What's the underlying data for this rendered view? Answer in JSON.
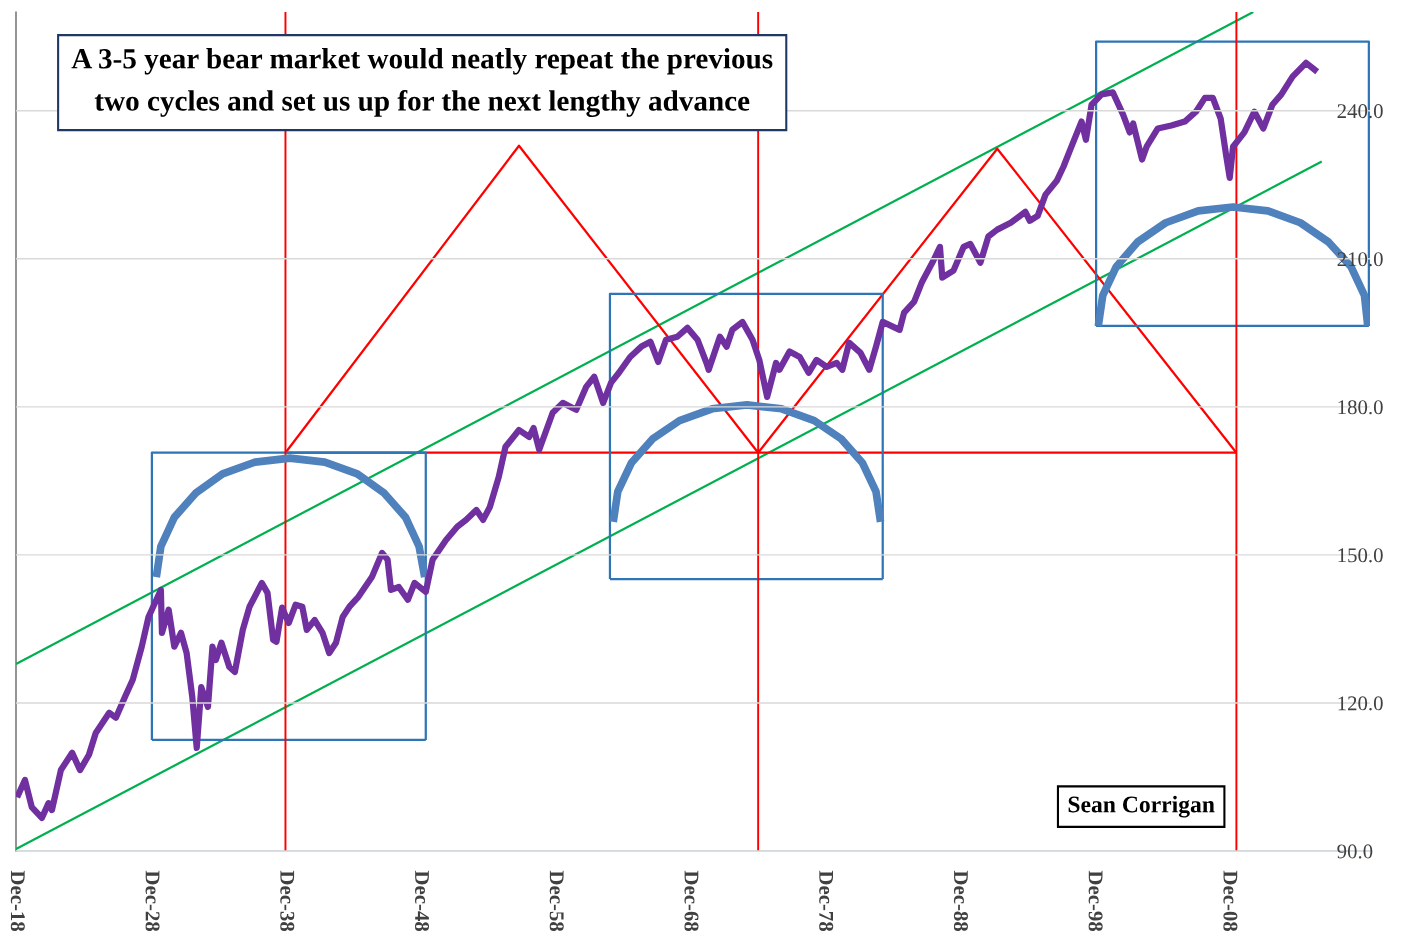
{
  "chart_data": {
    "type": "line",
    "annotations": [
      "A 3-5 year bear market would neatly repeat the previous\ntwo cycles and set us up for the next lengthy advance",
      "Sean Corrigan"
    ],
    "xlim": [
      "1918-12",
      "2019-06"
    ],
    "ylim": [
      90,
      260
    ],
    "xticks": [
      {
        "value": "1918-12",
        "label": "Dec-18"
      },
      {
        "value": "1928-12",
        "label": "Dec-28"
      },
      {
        "value": "1938-12",
        "label": "Dec-38"
      },
      {
        "value": "1948-12",
        "label": "Dec-48"
      },
      {
        "value": "1958-12",
        "label": "Dec-58"
      },
      {
        "value": "1968-12",
        "label": "Dec-68"
      },
      {
        "value": "1978-12",
        "label": "Dec-78"
      },
      {
        "value": "1988-12",
        "label": "Dec-88"
      },
      {
        "value": "1998-12",
        "label": "Dec-98"
      },
      {
        "value": "2008-12",
        "label": "Dec-08"
      }
    ],
    "yticks": [
      {
        "value": 90,
        "label": "90.0"
      },
      {
        "value": 120,
        "label": "120.0"
      },
      {
        "value": 150,
        "label": "150.0"
      },
      {
        "value": 180,
        "label": "180.0"
      },
      {
        "value": 210,
        "label": "210.0"
      },
      {
        "value": 240,
        "label": "240.0"
      }
    ],
    "grid": "y",
    "legend": false,
    "ref_lines": [
      {
        "axis": "x",
        "value": "1938-12",
        "color": "#ff0000"
      },
      {
        "axis": "x",
        "value": "1974-01",
        "color": "#ff0000"
      },
      {
        "axis": "x",
        "value": "2009-07",
        "color": "#ff0000"
      }
    ],
    "series": [
      {
        "color": "#00b050",
        "x": [
          "1918-12",
          "2010-10"
        ],
        "values": [
          127.9,
          260
        ]
      },
      {
        "color": "#00b050",
        "x": [
          "1918-12",
          "2015-11"
        ],
        "values": [
          90.4,
          229.7
        ]
      },
      {
        "color": "#ff0000",
        "x": [
          "1938-12",
          "1956-04",
          "1974-01",
          "1991-10",
          "2009-07"
        ],
        "values": [
          170.7,
          232.9,
          170.7,
          232.3,
          170.7
        ]
      },
      {
        "color": "#ff0000",
        "x": [
          "1938-12",
          "2009-07"
        ],
        "values": [
          170.7,
          170.7
        ]
      },
      {
        "color": "#2e75b6",
        "x": [
          "1929-01",
          "1929-01",
          "1949-05",
          "1949-05"
        ],
        "values": [
          112.5,
          170.7,
          170.7,
          112.5
        ]
      },
      {
        "color": "#2e75b6",
        "x": [
          "1929-01",
          "1949-05"
        ],
        "values": [
          112.5,
          112.5
        ]
      },
      {
        "color": "#2e75b6",
        "x": [
          "1963-01",
          "1963-01",
          "1983-04",
          "1983-04"
        ],
        "values": [
          145.1,
          202.9,
          202.9,
          145.1
        ]
      },
      {
        "color": "#2e75b6",
        "x": [
          "1963-01",
          "1983-04"
        ],
        "values": [
          145.1,
          145.1
        ]
      },
      {
        "color": "#2e75b6",
        "x": [
          "1999-02",
          "1999-02",
          "2019-05",
          "2019-05"
        ],
        "values": [
          196.4,
          254.0,
          254.0,
          196.4
        ]
      },
      {
        "color": "#2e75b6",
        "x": [
          "1999-02",
          "2019-05"
        ],
        "values": [
          196.4,
          196.4
        ]
      },
      {
        "color": "#4f81bd",
        "x": [
          "1929-05",
          "1929-09",
          "1930-09",
          "1932-04",
          "1934-04",
          "1936-09",
          "1939-04",
          "1941-11",
          "1944-04",
          "1946-04",
          "1947-11",
          "1948-11",
          "1949-04"
        ],
        "values": [
          145.5,
          151.7,
          157.6,
          162.5,
          166.4,
          168.8,
          169.6,
          168.8,
          166.4,
          162.5,
          157.6,
          151.7,
          145.5
        ]
      },
      {
        "color": "#4f81bd",
        "x": [
          "1963-04",
          "1963-08",
          "1964-08",
          "1966-03",
          "1968-03",
          "1970-08",
          "1973-03",
          "1975-10",
          "1978-03",
          "1980-03",
          "1981-10",
          "1982-10",
          "1983-02"
        ],
        "values": [
          156.7,
          162.8,
          168.6,
          173.5,
          177.2,
          179.6,
          180.4,
          179.6,
          177.2,
          173.5,
          168.6,
          162.8,
          156.7
        ]
      },
      {
        "color": "#4f81bd",
        "x": [
          "1999-04",
          "1999-08",
          "2000-08",
          "2002-03",
          "2004-04",
          "2006-09",
          "2009-04",
          "2011-11",
          "2014-04",
          "2016-05",
          "2018-01",
          "2019-01",
          "2019-04"
        ],
        "values": [
          196.4,
          202.6,
          208.4,
          213.4,
          217.3,
          219.7,
          220.5,
          219.7,
          217.3,
          213.4,
          208.4,
          202.6,
          196.4
        ]
      },
      {
        "color": "#7030a0",
        "x": [
          "1919-01",
          "1919-08",
          "1920-02",
          "1920-11",
          "1921-05",
          "1921-08",
          "1922-04",
          "1923-02",
          "1923-09",
          "1924-05",
          "1924-11",
          "1925-11",
          "1926-05",
          "1927-01",
          "1927-08",
          "1928-04",
          "1928-10",
          "1929-09",
          "1929-10",
          "1930-04",
          "1930-09",
          "1931-03",
          "1931-08",
          "1932-01",
          "1932-05",
          "1932-09",
          "1933-03",
          "1933-07",
          "1933-10",
          "1934-03",
          "1934-10",
          "1935-03",
          "1935-10",
          "1936-04",
          "1937-03",
          "1937-08",
          "1938-01",
          "1938-04",
          "1938-09",
          "1939-03",
          "1939-09",
          "1940-03",
          "1940-07",
          "1941-02",
          "1941-09",
          "1942-03",
          "1942-09",
          "1943-03",
          "1943-09",
          "1944-05",
          "1945-05",
          "1946-02",
          "1946-07",
          "1946-10",
          "1947-05",
          "1948-01",
          "1948-07",
          "1949-05",
          "1949-11",
          "1950-11",
          "1951-09",
          "1952-05",
          "1953-02",
          "1953-08",
          "1954-02",
          "1954-10",
          "1955-04",
          "1956-04",
          "1957-01",
          "1957-05",
          "1957-10",
          "1958-10",
          "1959-07",
          "1960-07",
          "1961-04",
          "1961-11",
          "1962-07",
          "1963-02",
          "1963-09",
          "1964-07",
          "1965-05",
          "1966-01",
          "1966-08",
          "1967-03",
          "1968-01",
          "1968-10",
          "1969-07",
          "1970-03",
          "1970-05",
          "1971-03",
          "1971-09",
          "1972-02",
          "1972-11",
          "1973-08",
          "1974-02",
          "1974-09",
          "1975-05",
          "1975-08",
          "1976-05",
          "1977-02",
          "1977-10",
          "1978-05",
          "1979-02",
          "1979-11",
          "1980-04",
          "1980-10",
          "1981-08",
          "1982-04",
          "1982-10",
          "1983-04",
          "1984-07",
          "1984-11",
          "1985-08",
          "1986-03",
          "1987-01",
          "1987-07",
          "1987-09",
          "1988-07",
          "1989-04",
          "1989-10",
          "1990-07",
          "1991-02",
          "1991-10",
          "1992-10",
          "1993-11",
          "1994-03",
          "1994-10",
          "1995-05",
          "1996-03",
          "1996-09",
          "1997-03",
          "1998-01",
          "1998-05",
          "1998-10",
          "1999-07",
          "2000-05",
          "2001-02",
          "2001-08",
          "2001-11",
          "2002-07",
          "2002-11",
          "2003-09",
          "2004-09",
          "2005-09",
          "2006-07",
          "2007-03",
          "2007-10",
          "2008-05",
          "2008-10",
          "2009-01",
          "2009-04",
          "2010-02",
          "2010-11",
          "2011-07",
          "2012-03",
          "2012-11",
          "2013-09",
          "2014-09",
          "2015-07"
        ],
        "values": [
          100.9,
          104.4,
          98.9,
          96.7,
          99.7,
          98.3,
          106.4,
          109.9,
          106.4,
          109.5,
          113.9,
          118.0,
          117.0,
          121.2,
          124.7,
          131.4,
          137.4,
          142.9,
          134.2,
          138.9,
          131.4,
          134.2,
          130.1,
          121.2,
          110.9,
          123.2,
          119.2,
          131.4,
          128.7,
          132.2,
          127.3,
          126.3,
          134.8,
          139.5,
          144.3,
          142.3,
          132.8,
          132.4,
          139.3,
          136.2,
          139.9,
          139.5,
          134.8,
          136.8,
          134.2,
          130.1,
          132.2,
          137.4,
          139.5,
          141.5,
          145.5,
          150.4,
          149.0,
          142.9,
          143.5,
          140.9,
          144.3,
          142.5,
          149.0,
          153.0,
          155.7,
          157.1,
          159.1,
          157.1,
          159.7,
          165.8,
          171.9,
          175.3,
          173.9,
          175.7,
          171.3,
          178.8,
          180.8,
          179.4,
          184.1,
          186.1,
          180.8,
          184.9,
          186.9,
          190.1,
          192.2,
          193.2,
          189.1,
          193.6,
          194.2,
          196.0,
          193.6,
          188.9,
          187.5,
          194.2,
          192.2,
          195.6,
          197.2,
          193.6,
          189.5,
          182.0,
          188.9,
          187.5,
          191.2,
          190.1,
          186.9,
          189.5,
          188.1,
          188.9,
          187.5,
          193.0,
          191.0,
          187.5,
          192.2,
          197.2,
          195.6,
          199.1,
          201.3,
          205.3,
          209.6,
          212.4,
          206.2,
          207.6,
          212.4,
          213.0,
          209.2,
          214.5,
          215.9,
          217.3,
          219.5,
          217.7,
          218.7,
          223.0,
          225.8,
          228.7,
          232.1,
          237.8,
          234.1,
          241.2,
          243.3,
          243.7,
          239.2,
          235.6,
          237.4,
          230.1,
          232.7,
          236.4,
          237.0,
          237.8,
          239.8,
          242.6,
          242.6,
          238.4,
          230.7,
          226.4,
          232.7,
          235.6,
          239.8,
          236.4,
          241.2,
          243.3,
          246.9,
          249.7,
          247.9
        ]
      }
    ]
  }
}
